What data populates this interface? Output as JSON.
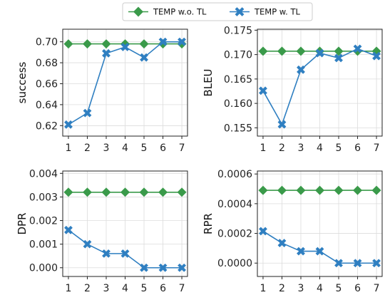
{
  "legend": {
    "items": [
      {
        "label": "TEMP w.o. TL",
        "color": "#3a9a4a",
        "marker": "diamond"
      },
      {
        "label": "TEMP w. TL",
        "color": "#2f7fc1",
        "marker": "x"
      }
    ],
    "placement": "top-center"
  },
  "chart_data": [
    {
      "type": "line",
      "ylabel": "success",
      "x": [
        1,
        2,
        3,
        4,
        5,
        6,
        7
      ],
      "ylim": [
        0.61,
        0.712
      ],
      "yticks": [
        0.62,
        0.64,
        0.66,
        0.68,
        0.7
      ],
      "ytick_labels": [
        "0.62",
        "0.64",
        "0.66",
        "0.68",
        "0.70"
      ],
      "grid": true,
      "series": [
        {
          "name": "TEMP w.o. TL",
          "values": [
            0.698,
            0.698,
            0.698,
            0.698,
            0.698,
            0.698,
            0.698
          ]
        },
        {
          "name": "TEMP w. TL",
          "values": [
            0.621,
            0.632,
            0.689,
            0.695,
            0.685,
            0.7,
            0.7
          ]
        }
      ]
    },
    {
      "type": "line",
      "ylabel": "BLEU",
      "x": [
        1,
        2,
        3,
        4,
        5,
        6,
        7
      ],
      "ylim": [
        0.1533,
        0.1752
      ],
      "yticks": [
        0.155,
        0.16,
        0.165,
        0.17,
        0.175
      ],
      "ytick_labels": [
        "0.155",
        "0.160",
        "0.165",
        "0.170",
        "0.175"
      ],
      "grid": true,
      "series": [
        {
          "name": "TEMP w.o. TL",
          "values": [
            0.1707,
            0.1707,
            0.1707,
            0.1707,
            0.1707,
            0.1707,
            0.1707
          ]
        },
        {
          "name": "TEMP w. TL",
          "values": [
            0.1626,
            0.1557,
            0.1669,
            0.1703,
            0.1693,
            0.1712,
            0.1697
          ]
        }
      ]
    },
    {
      "type": "line",
      "ylabel": "DPR",
      "x": [
        1,
        2,
        3,
        4,
        5,
        6,
        7
      ],
      "ylim": [
        -0.00037,
        0.0041
      ],
      "yticks": [
        0.0,
        0.001,
        0.002,
        0.003,
        0.004
      ],
      "ytick_labels": [
        "0.000",
        "0.001",
        "0.002",
        "0.003",
        "0.004"
      ],
      "grid": true,
      "series": [
        {
          "name": "TEMP w.o. TL",
          "values": [
            0.0032,
            0.0032,
            0.0032,
            0.0032,
            0.0032,
            0.0032,
            0.0032
          ]
        },
        {
          "name": "TEMP w. TL",
          "values": [
            0.0016,
            0.001,
            0.0006,
            0.0006,
            0.0,
            0.0,
            0.0
          ]
        }
      ]
    },
    {
      "type": "line",
      "ylabel": "RPR",
      "x": [
        1,
        2,
        3,
        4,
        5,
        6,
        7
      ],
      "ylim": [
        -9e-05,
        0.00062
      ],
      "yticks": [
        0.0,
        0.0002,
        0.0004,
        0.0006
      ],
      "ytick_labels": [
        "0.0000",
        "0.0002",
        "0.0004",
        "0.0006"
      ],
      "grid": true,
      "series": [
        {
          "name": "TEMP w.o. TL",
          "values": [
            0.00049,
            0.00049,
            0.00049,
            0.00049,
            0.00049,
            0.00049,
            0.00049
          ]
        },
        {
          "name": "TEMP w. TL",
          "values": [
            0.000215,
            0.000135,
            8e-05,
            8e-05,
            0.0,
            0.0,
            0.0
          ]
        }
      ]
    }
  ]
}
